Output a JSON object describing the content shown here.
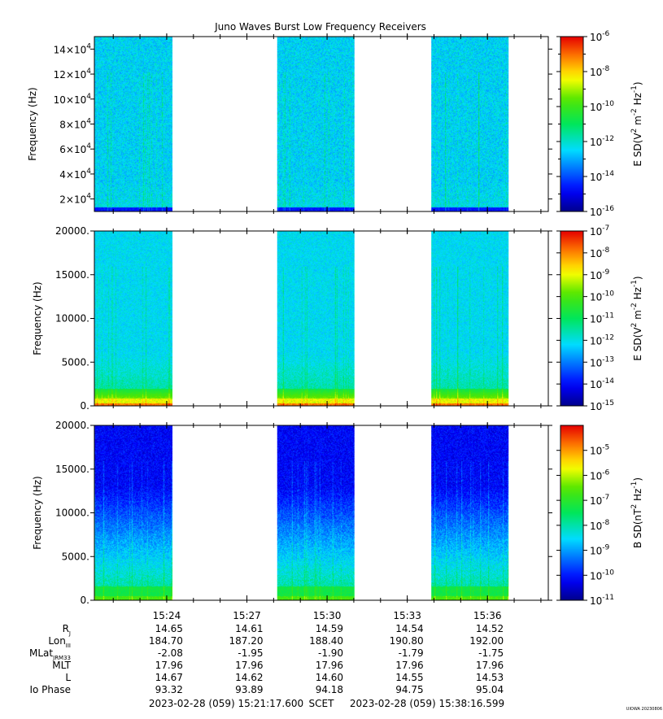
{
  "title": "Juno Waves Burst Low Frequency Receivers",
  "credit": "UIOWA 20230806",
  "chart_data": [
    {
      "type": "heatmap",
      "name": "panel-1",
      "ylabel": "Frequency (Hz)",
      "yscale": "linear",
      "ylim": [
        10000,
        150000
      ],
      "y_ticks": [
        {
          "value": 20000,
          "mantissa": "2×10",
          "exp": "4"
        },
        {
          "value": 40000,
          "mantissa": "4×10",
          "exp": "4"
        },
        {
          "value": 60000,
          "mantissa": "6×10",
          "exp": "4"
        },
        {
          "value": 80000,
          "mantissa": "8×10",
          "exp": "4"
        },
        {
          "value": 100000,
          "mantissa": "10×10",
          "exp": "4"
        },
        {
          "value": 120000,
          "mantissa": "12×10",
          "exp": "4"
        },
        {
          "value": 140000,
          "mantissa": "14×10",
          "exp": "4"
        }
      ],
      "colorbar": {
        "label_parts": [
          "E SD(V",
          "2",
          " m",
          "-2",
          " Hz",
          "-1",
          ")"
        ],
        "scale": "log",
        "range_exp": [
          -16,
          -6
        ],
        "ticks": [
          -16,
          -14,
          -12,
          -10,
          -8,
          -6
        ],
        "minor_ticks": [
          -15,
          -13,
          -11,
          -9,
          -7
        ]
      },
      "style": {
        "base": 0.35,
        "noise": 0.07,
        "low_band": "blue"
      }
    },
    {
      "type": "heatmap",
      "name": "panel-2",
      "ylabel": "Frequency (Hz)",
      "yscale": "linear",
      "ylim": [
        0,
        20000
      ],
      "y_ticks": [
        {
          "value": 0,
          "label": "0."
        },
        {
          "value": 5000,
          "label": "5000."
        },
        {
          "value": 10000,
          "label": "10000."
        },
        {
          "value": 15000,
          "label": "15000."
        },
        {
          "value": 20000,
          "label": "20000."
        }
      ],
      "colorbar": {
        "label_parts": [
          "E SD(V",
          "2",
          " m",
          "-2",
          " Hz",
          "-1",
          ")"
        ],
        "scale": "log",
        "range_exp": [
          -15,
          -7
        ],
        "ticks": [
          -15,
          -14,
          -13,
          -12,
          -11,
          -10,
          -9,
          -8,
          -7
        ],
        "minor_ticks": []
      },
      "style": {
        "base": 0.36,
        "noise": 0.05,
        "low_band": "green-red"
      }
    },
    {
      "type": "heatmap",
      "name": "panel-3",
      "ylabel": "Frequency (Hz)",
      "yscale": "linear",
      "ylim": [
        0,
        20000
      ],
      "y_ticks": [
        {
          "value": 0,
          "label": "0."
        },
        {
          "value": 5000,
          "label": "5000."
        },
        {
          "value": 10000,
          "label": "10000."
        },
        {
          "value": 15000,
          "label": "15000."
        },
        {
          "value": 20000,
          "label": "20000."
        }
      ],
      "colorbar": {
        "label_parts": [
          "B SD(nT",
          "2",
          " Hz",
          "-1",
          ")"
        ],
        "scale": "log",
        "range_exp": [
          -11,
          -4
        ],
        "ticks": [
          -11,
          -10,
          -9,
          -8,
          -7,
          -6,
          -5
        ],
        "minor_ticks": []
      },
      "style": {
        "base": 0.12,
        "noise": 0.06,
        "low_band": "green"
      }
    }
  ],
  "x_axis": {
    "range_seconds": [
      1277.6,
      2296.6
    ],
    "tick_labels": [
      "15:24",
      "15:27",
      "15:30",
      "15:33",
      "15:36"
    ],
    "tick_seconds": [
      1440,
      1620,
      1800,
      1980,
      2160
    ],
    "data_intervals_seconds": [
      [
        1277.6,
        1452
      ],
      [
        1688,
        1862
      ],
      [
        2034,
        2208
      ]
    ]
  },
  "ephemeris": {
    "rows": [
      {
        "label": "R",
        "sub": "J",
        "values": [
          "14.65",
          "14.61",
          "14.59",
          "14.54",
          "14.52"
        ]
      },
      {
        "label": "Lon",
        "sub": "III",
        "values": [
          "184.70",
          "187.20",
          "188.40",
          "190.80",
          "192.00"
        ]
      },
      {
        "label": "MLat",
        "sub": "JRM33",
        "values": [
          "-2.08",
          "-1.95",
          "-1.90",
          "-1.79",
          "-1.75"
        ]
      },
      {
        "label": "MLT",
        "sub": "",
        "values": [
          "17.96",
          "17.96",
          "17.96",
          "17.96",
          "17.96"
        ]
      },
      {
        "label": "L",
        "sub": "",
        "values": [
          "14.67",
          "14.62",
          "14.60",
          "14.55",
          "14.53"
        ]
      },
      {
        "label": "Io Phase",
        "sub": "",
        "values": [
          "93.32",
          "93.89",
          "94.18",
          "94.75",
          "95.04"
        ]
      }
    ]
  },
  "footer": {
    "start": "2023-02-28 (059) 15:21:17.600",
    "axis": "SCET",
    "end": "2023-02-28 (059) 15:38:16.599"
  }
}
